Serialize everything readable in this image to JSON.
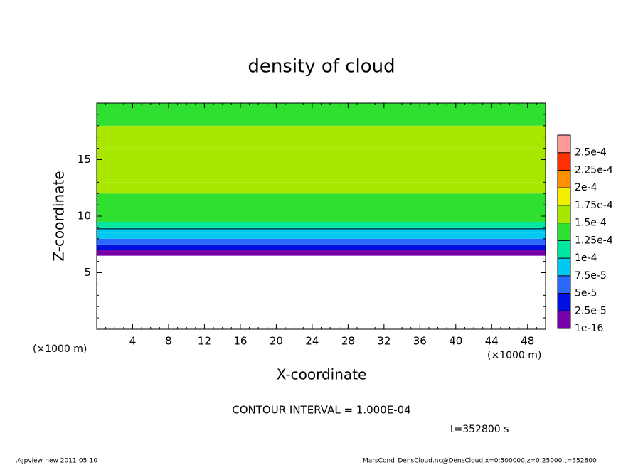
{
  "chart_data": {
    "type": "contour",
    "title": "density of cloud",
    "xlabel": "X-coordinate",
    "ylabel": "Z-coordinate",
    "xunit": "(×1000 m)",
    "xunit2": "(×1000 m)",
    "contour_note": "CONTOUR INTERVAL = 1.000E-04",
    "time_note": "t=352800 s",
    "footer_left": "./gpview-new  2011-05-10",
    "footer_right": "MarsCond_DensCloud.nc@DensCloud,x=0:500000,z=0:25000,t=352800",
    "xlim": [
      0,
      50
    ],
    "xticks": [
      4,
      8,
      12,
      16,
      20,
      24,
      28,
      32,
      36,
      40,
      44,
      48
    ],
    "ylim": [
      0,
      20
    ],
    "yticks": [
      5,
      10,
      15
    ],
    "contour_level": 0.0001,
    "z_edges": [
      6.5,
      7,
      7.5,
      8,
      8.5,
      9,
      9.5,
      10,
      11,
      12,
      13,
      14,
      15,
      16,
      17,
      18,
      19,
      20
    ],
    "values": [
      1e-05,
      3.5e-05,
      6e-05,
      8.5e-05,
      9.5e-05,
      0.000115,
      0.000135,
      0.00014,
      0.000145,
      0.00015,
      0.000155,
      0.00016,
      0.000155,
      0.00015,
      0.00015,
      0.000145,
      0.00014
    ],
    "colorbar": {
      "ticks": [
        {
          "value": 1e-16,
          "label": "1e-16"
        },
        {
          "value": 2.5e-05,
          "label": "2.5e-5"
        },
        {
          "value": 5e-05,
          "label": "5e-5"
        },
        {
          "value": 7.5e-05,
          "label": "7.5e-5"
        },
        {
          "value": 0.0001,
          "label": "1e-4"
        },
        {
          "value": 0.000125,
          "label": "1.25e-4"
        },
        {
          "value": 0.00015,
          "label": "1.5e-4"
        },
        {
          "value": 0.000175,
          "label": "1.75e-4"
        },
        {
          "value": 0.0002,
          "label": "2e-4"
        },
        {
          "value": 0.000225,
          "label": "2.25e-4"
        },
        {
          "value": 0.00025,
          "label": "2.5e-4"
        }
      ],
      "colors": [
        "#7800a8",
        "#0010e0",
        "#2a68ff",
        "#00c8f0",
        "#00e8a0",
        "#30e030",
        "#a8e800",
        "#f0f000",
        "#ff9000",
        "#ff3000",
        "#ff9898"
      ]
    }
  }
}
